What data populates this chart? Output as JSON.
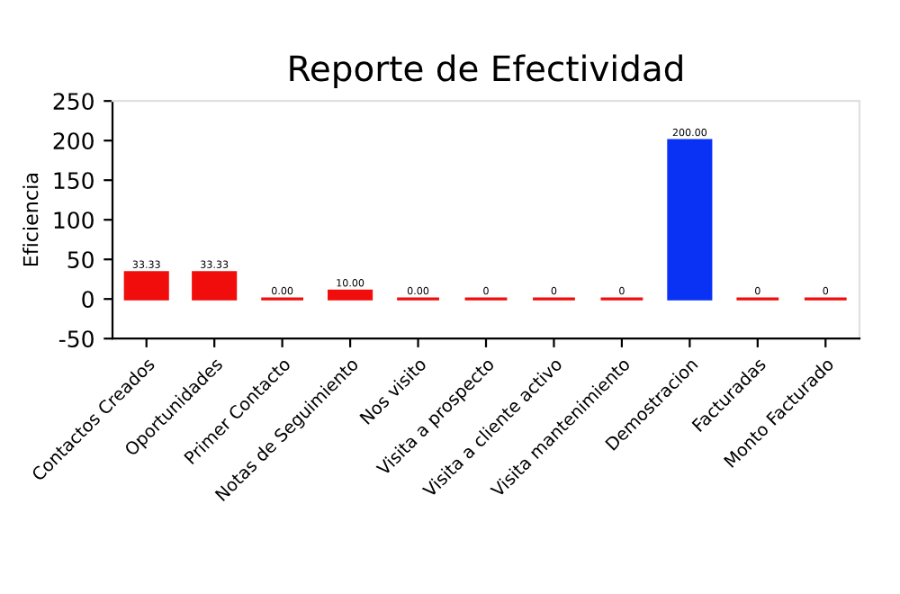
{
  "chart_data": {
    "type": "bar",
    "title": "Reporte de Efectividad",
    "ylabel": "Eficiencia",
    "categories": [
      "Contactos Creados",
      "Oportunidades",
      "Primer Contacto",
      "Notas de Seguimiento",
      "Nos visito",
      "Visita a prospecto",
      "Visita a cliente activo",
      "Visita mantenimiento",
      "Demostracion",
      "Facturadas",
      "Monto Facturado"
    ],
    "values": [
      33.33,
      33.33,
      0,
      10,
      0,
      0,
      0,
      0,
      200,
      0,
      0
    ],
    "colors": [
      "#f20d0d",
      "#f20d0d",
      "#f20d0d",
      "#f20d0d",
      "#f20d0d",
      "#f20d0d",
      "#f20d0d",
      "#f20d0d",
      "#0a32f5",
      "#f20d0d",
      "#f20d0d"
    ],
    "value_labels": [
      "33.33",
      "33.33",
      "0.00",
      "10.00",
      "0.00",
      "0",
      "0",
      "0",
      "200.00",
      "0",
      "0"
    ],
    "ylim": [
      -50,
      250
    ],
    "yticks": [
      -50,
      0,
      50,
      100,
      150,
      200,
      250
    ],
    "grid": false,
    "legend": false
  }
}
